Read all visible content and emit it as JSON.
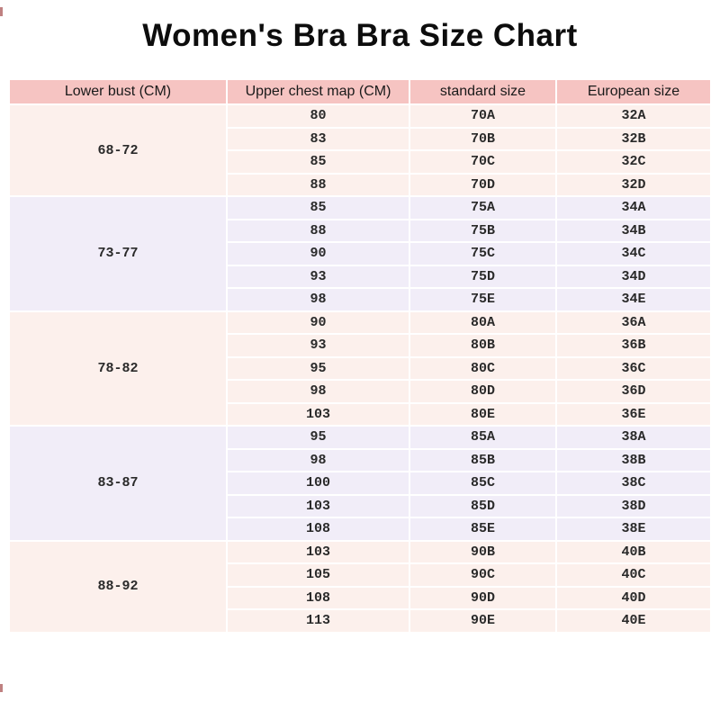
{
  "page": {
    "title": "Women's Bra Bra Size Chart"
  },
  "colors": {
    "header_bg": "#f6c4c2",
    "pink_group_bg": "#fcf0ec",
    "lavender_group_bg": "#f1edf8",
    "separator": "#ffffff",
    "title_text": "#0d0d0d",
    "cell_text": "#2a2a2a"
  },
  "chart_data": {
    "type": "table",
    "title": "Women's Bra Bra Size Chart",
    "columns": [
      "Lower bust (CM)",
      "Upper chest map (CM)",
      "standard size",
      "European size"
    ],
    "groups": [
      {
        "lower_bust": "68-72",
        "theme": "pink",
        "rows": [
          [
            "80",
            "70A",
            "32A"
          ],
          [
            "83",
            "70B",
            "32B"
          ],
          [
            "85",
            "70C",
            "32C"
          ],
          [
            "88",
            "70D",
            "32D"
          ]
        ]
      },
      {
        "lower_bust": "73-77",
        "theme": "lavender",
        "rows": [
          [
            "85",
            "75A",
            "34A"
          ],
          [
            "88",
            "75B",
            "34B"
          ],
          [
            "90",
            "75C",
            "34C"
          ],
          [
            "93",
            "75D",
            "34D"
          ],
          [
            "98",
            "75E",
            "34E"
          ]
        ]
      },
      {
        "lower_bust": "78-82",
        "theme": "pink",
        "rows": [
          [
            "90",
            "80A",
            "36A"
          ],
          [
            "93",
            "80B",
            "36B"
          ],
          [
            "95",
            "80C",
            "36C"
          ],
          [
            "98",
            "80D",
            "36D"
          ],
          [
            "103",
            "80E",
            "36E"
          ]
        ]
      },
      {
        "lower_bust": "83-87",
        "theme": "lavender",
        "rows": [
          [
            "95",
            "85A",
            "38A"
          ],
          [
            "98",
            "85B",
            "38B"
          ],
          [
            "100",
            "85C",
            "38C"
          ],
          [
            "103",
            "85D",
            "38D"
          ],
          [
            "108",
            "85E",
            "38E"
          ]
        ]
      },
      {
        "lower_bust": "88-92",
        "theme": "pink",
        "rows": [
          [
            "103",
            "90B",
            "40B"
          ],
          [
            "105",
            "90C",
            "40C"
          ],
          [
            "108",
            "90D",
            "40D"
          ],
          [
            "113",
            "90E",
            "40E"
          ]
        ]
      }
    ]
  }
}
